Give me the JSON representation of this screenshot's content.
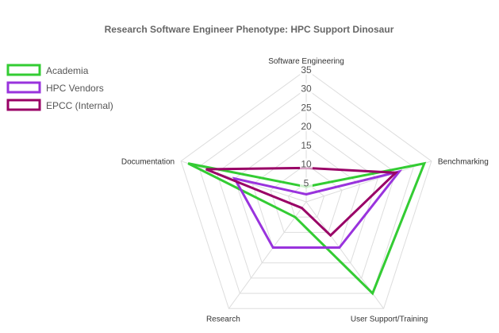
{
  "chart_data": {
    "type": "radar",
    "title": "Research Software Engineer Phenotype: HPC Support Dinosaur",
    "axes": [
      "Software Engineering",
      "Benchmarking",
      "User Support/Training",
      "Research",
      "Documentation"
    ],
    "ticks": [
      "5",
      "10",
      "15",
      "20",
      "25",
      "30",
      "35"
    ],
    "r_range": [
      0,
      35
    ],
    "grid": true,
    "legend_position": "top-left",
    "series": [
      {
        "name": "Academia",
        "color": "#33cc33",
        "values": [
          4,
          33,
          30,
          5,
          33
        ]
      },
      {
        "name": "HPC Vendors",
        "color": "#9933dd",
        "values": [
          2,
          26,
          15,
          15,
          20
        ]
      },
      {
        "name": "EPCC (Internal)",
        "color": "#990066",
        "values": [
          9,
          25,
          11,
          2,
          28
        ]
      }
    ]
  }
}
